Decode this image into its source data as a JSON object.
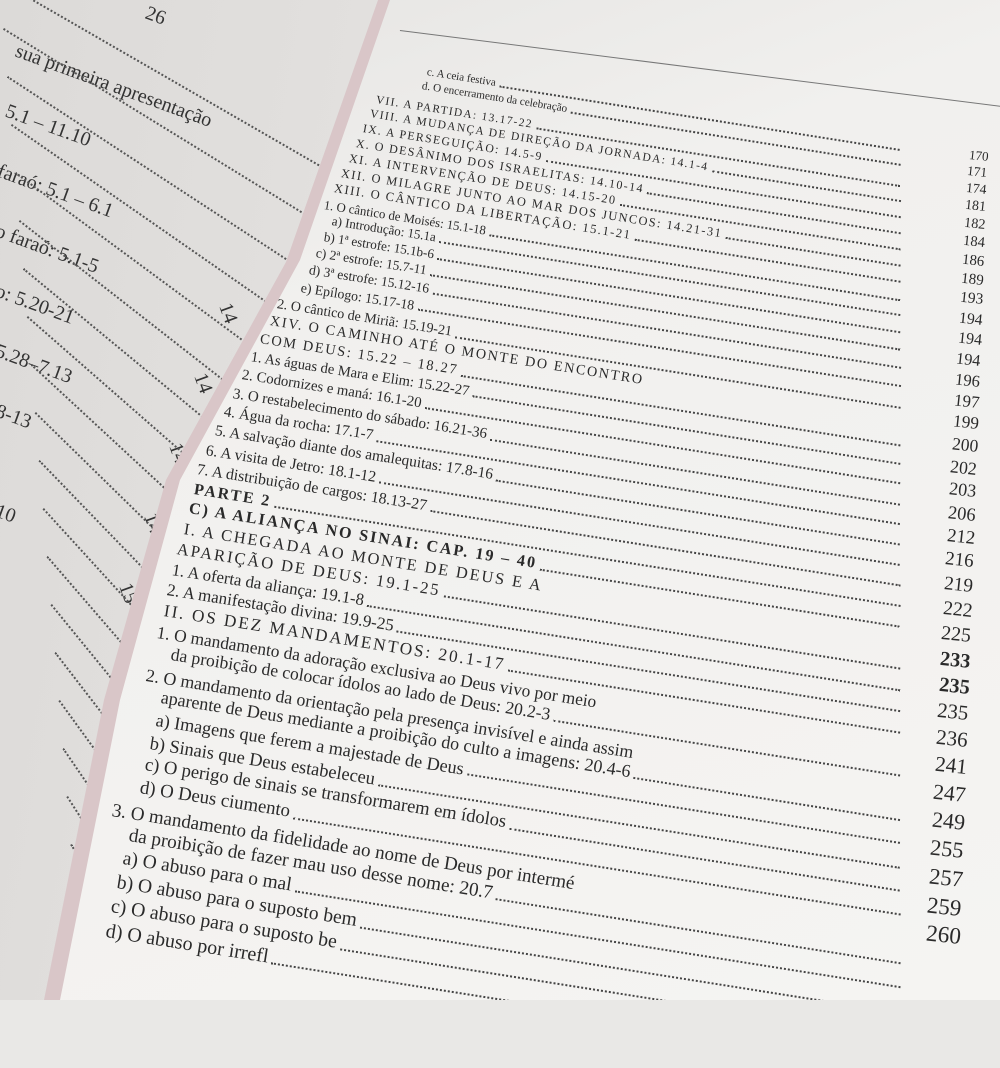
{
  "left_page": {
    "fragments": [
      "26",
      "sua primeira apresentação",
      "5.1 – 11.10",
      "faraó: 5.1 – 6.1",
      "o faraó: 5.1-5",
      "o: 5.20-21",
      "5.28–7.13",
      "8-13",
      "10",
      "14",
      "14",
      "14",
      "14",
      "15"
    ]
  },
  "toc": {
    "entries": [
      {
        "label": "c.  A ceia festiva",
        "level": 3,
        "caps": false
      },
      {
        "label": "d.  O encerramento da celebração",
        "level": 3,
        "caps": false
      },
      {
        "label": "VII.  A PARTIDA: 13.17-22",
        "level": 0,
        "caps": true
      },
      {
        "label": "VIII. A MUDANÇA DE DIREÇÃO DA JORNADA: 14.1-4",
        "level": 0,
        "caps": true
      },
      {
        "label": "IX.   A PERSEGUIÇÃO: 14.5-9",
        "level": 0,
        "caps": true
      },
      {
        "label": "X.    O DESÂNIMO DOS ISRAELITAS: 14.10-14",
        "level": 0,
        "caps": true
      },
      {
        "label": "XI.   A INTERVENÇÃO DE DEUS: 14.15-20",
        "level": 0,
        "caps": true
      },
      {
        "label": "XII.  O MILAGRE JUNTO AO MAR DOS JUNCOS: 14.21-31",
        "level": 0,
        "caps": true
      },
      {
        "label": "XIII. O CÂNTICO DA LIBERTAÇÃO: 15.1-21",
        "level": 0,
        "caps": true
      },
      {
        "label": "1. O cântico de Moisés: 15.1-18",
        "level": 1,
        "caps": false
      },
      {
        "label": "a) Introdução: 15.1a",
        "level": 2,
        "caps": false
      },
      {
        "label": "b) 1ª estrofe: 15.1b-6",
        "level": 2,
        "caps": false
      },
      {
        "label": "c) 2ª estrofe: 15.7-11",
        "level": 2,
        "caps": false
      },
      {
        "label": "d) 3ª estrofe: 15.12-16",
        "level": 2,
        "caps": false
      },
      {
        "label": "e) Epílogo: 15.17-18",
        "level": 2,
        "caps": false
      },
      {
        "label": "2. O cântico de Miriã: 15.19-21",
        "level": 1,
        "caps": false
      },
      {
        "label": "XIV. O CAMINHO ATÉ O MONTE DO ENCONTRO",
        "level": 0,
        "caps": true,
        "noleader": true
      },
      {
        "label": "COM DEUS: 15.22 – 18.27",
        "level": 1,
        "caps": true
      },
      {
        "label": "1. As águas de Mara e Elim: 15.22-27",
        "level": 1,
        "caps": false
      },
      {
        "label": "2. Codornizes e maná: 16.1-20",
        "level": 1,
        "caps": false
      },
      {
        "label": "3. O restabelecimento do sábado: 16.21-36",
        "level": 1,
        "caps": false
      },
      {
        "label": "4. Água da rocha: 17.1-7",
        "level": 1,
        "caps": false
      },
      {
        "label": "5. A salvação diante dos amalequitas: 17.8-16",
        "level": 1,
        "caps": false
      },
      {
        "label": "6. A visita de Jetro: 18.1-12",
        "level": 1,
        "caps": false
      },
      {
        "label": "7. A distribuição de cargos: 18.13-27",
        "level": 1,
        "caps": false
      },
      {
        "label": "PARTE 2",
        "level": 0,
        "caps": true,
        "bold": true
      },
      {
        "label": "C) A ALIANÇA NO SINAI: CAP. 19 – 40",
        "level": 0,
        "caps": true,
        "bold": true
      },
      {
        "label": "I.    A CHEGADA AO MONTE DE DEUS E A",
        "level": 0,
        "caps": true,
        "noleader": true
      },
      {
        "label": "APARIÇÃO DE DEUS: 19.1-25",
        "level": 1,
        "caps": true
      },
      {
        "label": "1. A oferta da aliança: 19.1-8",
        "level": 1,
        "caps": false
      },
      {
        "label": "2. A manifestação divina: 19.9-25",
        "level": 1,
        "caps": false
      },
      {
        "label": "II.  OS DEZ MANDAMENTOS: 20.1-17",
        "level": 0,
        "caps": true
      },
      {
        "label": "1. O mandamento da adoração exclusiva ao Deus vivo por meio",
        "level": 1,
        "caps": false,
        "noleader": true
      },
      {
        "label": "da proibição de colocar ídolos ao lado de Deus: 20.2-3",
        "level": 2,
        "caps": false
      },
      {
        "label": "2. O mandamento da orientação pela presença invisível e ainda assim",
        "level": 1,
        "caps": false,
        "noleader": true
      },
      {
        "label": "aparente de Deus mediante a proibição do culto a imagens: 20.4-6",
        "level": 2,
        "caps": false
      },
      {
        "label": "a) Imagens que ferem a majestade de Deus",
        "level": 2,
        "caps": false
      },
      {
        "label": "b) Sinais que Deus estabeleceu",
        "level": 2,
        "caps": false
      },
      {
        "label": "c) O perigo de sinais se transformarem em ídolos",
        "level": 2,
        "caps": false
      },
      {
        "label": "d) O Deus ciumento",
        "level": 2,
        "caps": false
      },
      {
        "label": "3. O mandamento da fidelidade ao nome de Deus por intermé",
        "level": 1,
        "caps": false,
        "noleader": true
      },
      {
        "label": "da proibição de fazer mau uso desse nome: 20.7",
        "level": 2,
        "caps": false
      },
      {
        "label": "a) O abuso para o mal",
        "level": 2,
        "caps": false
      },
      {
        "label": "b) O abuso para o suposto bem",
        "level": 2,
        "caps": false
      },
      {
        "label": "c) O abuso para o suposto be",
        "level": 2,
        "caps": false
      },
      {
        "label": "d) O abuso por irrefl",
        "level": 2,
        "caps": false
      }
    ],
    "pages": [
      {
        "n": "170"
      },
      {
        "n": "171"
      },
      {
        "n": "174"
      },
      {
        "n": "181"
      },
      {
        "n": "182"
      },
      {
        "n": "184"
      },
      {
        "n": "186"
      },
      {
        "n": "189"
      },
      {
        "n": "193"
      },
      {
        "n": "194"
      },
      {
        "n": "194"
      },
      {
        "n": "194"
      },
      {
        "n": "196"
      },
      {
        "n": "197"
      },
      {
        "n": "199"
      },
      {
        "n": "200"
      },
      {
        "n": "202"
      },
      {
        "n": "203"
      },
      {
        "n": "206"
      },
      {
        "n": "212"
      },
      {
        "n": "216"
      },
      {
        "n": "219"
      },
      {
        "n": "222"
      },
      {
        "n": "225"
      },
      {
        "n": "233",
        "bold": true
      },
      {
        "n": "235",
        "bold": true
      },
      {
        "n": "235"
      },
      {
        "n": "236"
      },
      {
        "n": "241"
      },
      {
        "n": "247"
      },
      {
        "n": "249"
      },
      {
        "n": "255"
      },
      {
        "n": "257"
      },
      {
        "n": "259"
      },
      {
        "n": "260"
      }
    ]
  },
  "colors": {
    "paper": "#f3f2f0",
    "ink": "#2a2a2a",
    "spine": "#d9c6c8"
  }
}
